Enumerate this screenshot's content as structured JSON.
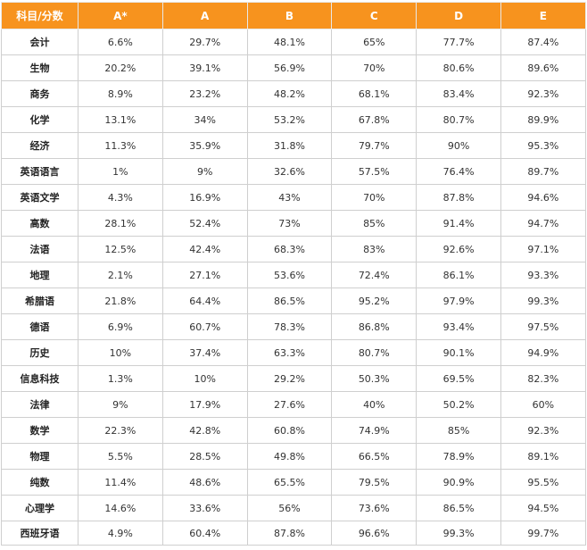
{
  "table": {
    "headers": [
      "科目/分数",
      "A*",
      "A",
      "B",
      "C",
      "D",
      "E"
    ],
    "rows": [
      [
        "会计",
        "6.6%",
        "29.7%",
        "48.1%",
        "65%",
        "77.7%",
        "87.4%"
      ],
      [
        "生物",
        "20.2%",
        "39.1%",
        "56.9%",
        "70%",
        "80.6%",
        "89.6%"
      ],
      [
        "商务",
        "8.9%",
        "23.2%",
        "48.2%",
        "68.1%",
        "83.4%",
        "92.3%"
      ],
      [
        "化学",
        "13.1%",
        "34%",
        "53.2%",
        "67.8%",
        "80.7%",
        "89.9%"
      ],
      [
        "经济",
        "11.3%",
        "35.9%",
        "31.8%",
        "79.7%",
        "90%",
        "95.3%"
      ],
      [
        "英语语言",
        "1%",
        "9%",
        "32.6%",
        "57.5%",
        "76.4%",
        "89.7%"
      ],
      [
        "英语文学",
        "4.3%",
        "16.9%",
        "43%",
        "70%",
        "87.8%",
        "94.6%"
      ],
      [
        "高数",
        "28.1%",
        "52.4%",
        "73%",
        "85%",
        "91.4%",
        "94.7%"
      ],
      [
        "法语",
        "12.5%",
        "42.4%",
        "68.3%",
        "83%",
        "92.6%",
        "97.1%"
      ],
      [
        "地理",
        "2.1%",
        "27.1%",
        "53.6%",
        "72.4%",
        "86.1%",
        "93.3%"
      ],
      [
        "希腊语",
        "21.8%",
        "64.4%",
        "86.5%",
        "95.2%",
        "97.9%",
        "99.3%"
      ],
      [
        "德语",
        "6.9%",
        "60.7%",
        "78.3%",
        "86.8%",
        "93.4%",
        "97.5%"
      ],
      [
        "历史",
        "10%",
        "37.4%",
        "63.3%",
        "80.7%",
        "90.1%",
        "94.9%"
      ],
      [
        "信息科技",
        "1.3%",
        "10%",
        "29.2%",
        "50.3%",
        "69.5%",
        "82.3%"
      ],
      [
        "法律",
        "9%",
        "17.9%",
        "27.6%",
        "40%",
        "50.2%",
        "60%"
      ],
      [
        "数学",
        "22.3%",
        "42.8%",
        "60.8%",
        "74.9%",
        "85%",
        "92.3%"
      ],
      [
        "物理",
        "5.5%",
        "28.5%",
        "49.8%",
        "66.5%",
        "78.9%",
        "89.1%"
      ],
      [
        "纯数",
        "11.4%",
        "48.6%",
        "65.5%",
        "79.5%",
        "90.9%",
        "95.5%"
      ],
      [
        "心理学",
        "14.6%",
        "33.6%",
        "56%",
        "73.6%",
        "86.5%",
        "94.5%"
      ],
      [
        "西班牙语",
        "4.9%",
        "60.4%",
        "87.8%",
        "96.6%",
        "99.3%",
        "99.7%"
      ]
    ]
  },
  "colors": {
    "header_bg": "#f7931e",
    "header_text": "#ffffff",
    "border": "#cfcfcf"
  }
}
